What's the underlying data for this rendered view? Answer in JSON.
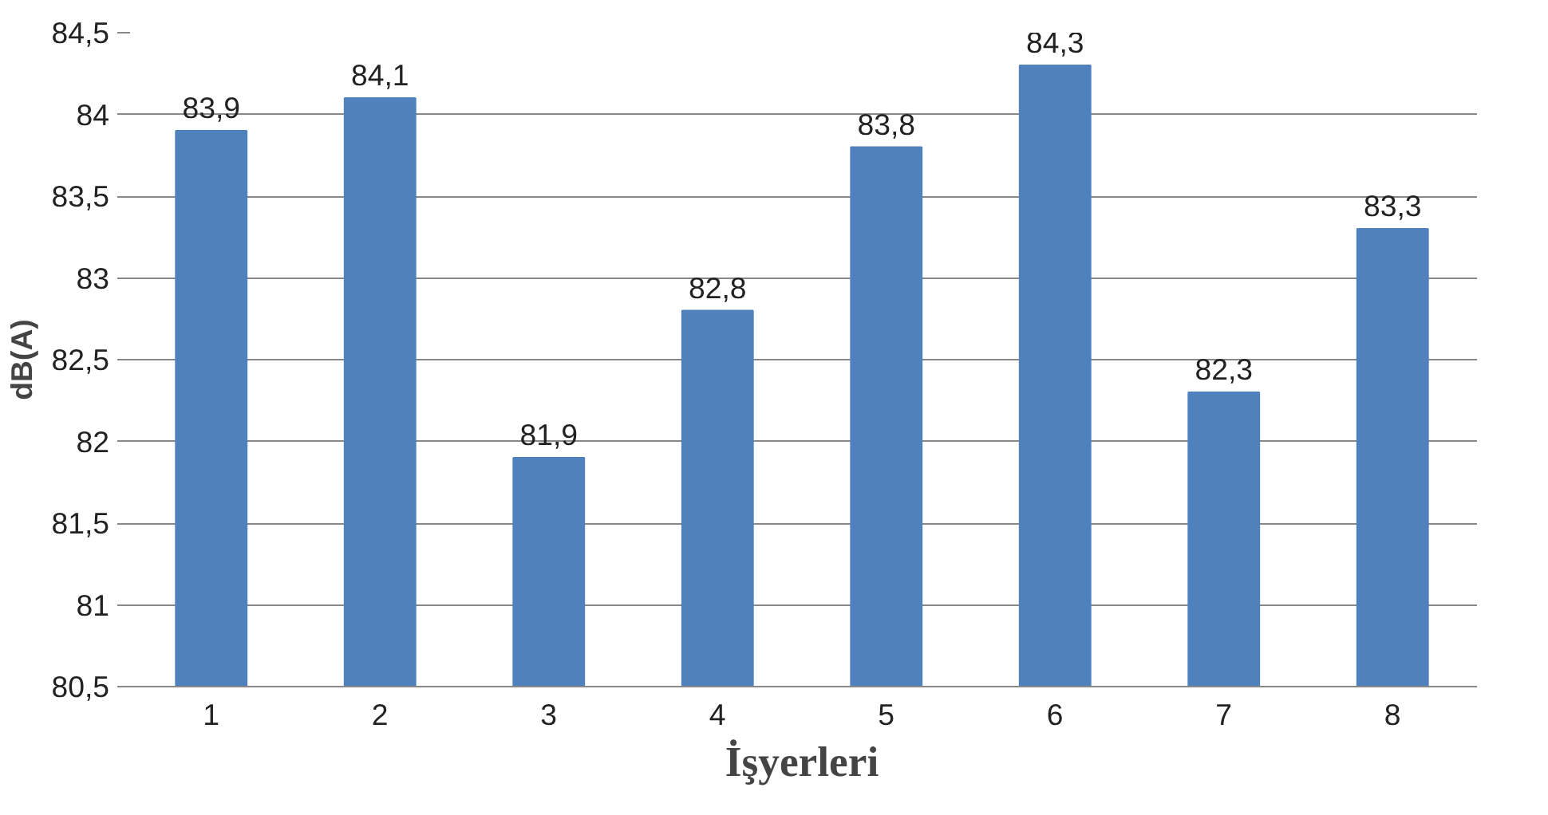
{
  "chart_data": {
    "type": "bar",
    "categories": [
      "1",
      "2",
      "3",
      "4",
      "5",
      "6",
      "7",
      "8"
    ],
    "values": [
      83.9,
      84.1,
      81.9,
      82.8,
      83.8,
      84.3,
      82.3,
      83.3
    ],
    "value_labels": [
      "83,9",
      "84,1",
      "81,9",
      "82,8",
      "83,8",
      "84,3",
      "82,3",
      "83,3"
    ],
    "color": "#4f81bd",
    "xlabel": "İşyerleri",
    "ylabel": "dB(A)",
    "ylim": [
      80.5,
      84.5
    ],
    "yticks": [
      {
        "value": 80.5,
        "label": "80,5"
      },
      81,
      {
        "value": 81.5,
        "label": "81,5"
      },
      82,
      {
        "value": 82.5,
        "label": "82,5"
      },
      83,
      {
        "value": 83.5,
        "label": "83,5"
      },
      84,
      {
        "value": 84.5,
        "label": "84,5"
      }
    ],
    "grid": "y"
  }
}
